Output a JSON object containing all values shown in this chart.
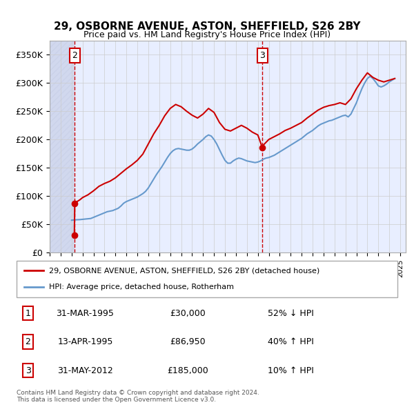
{
  "title": "29, OSBORNE AVENUE, ASTON, SHEFFIELD, S26 2BY",
  "subtitle": "Price paid vs. HM Land Registry's House Price Index (HPI)",
  "ylabel_ticks": [
    "£0",
    "£50K",
    "£100K",
    "£150K",
    "£200K",
    "£250K",
    "£300K",
    "£350K"
  ],
  "ytick_values": [
    0,
    50000,
    100000,
    150000,
    200000,
    250000,
    300000,
    350000
  ],
  "ylim": [
    0,
    375000
  ],
  "xlim_start": 1993.0,
  "xlim_end": 2025.5,
  "background_color": "#f0f4ff",
  "hatch_region_end": 1995.25,
  "transaction1": {
    "date_num": 1995.25,
    "price": 30000,
    "label": "1"
  },
  "transaction2": {
    "date_num": 1995.29,
    "price": 86950,
    "label": "2"
  },
  "transaction3": {
    "date_num": 2012.42,
    "price": 185000,
    "label": "3"
  },
  "legend_line1": "29, OSBORNE AVENUE, ASTON, SHEFFIELD, S26 2BY (detached house)",
  "legend_line2": "HPI: Average price, detached house, Rotherham",
  "table_rows": [
    {
      "num": "1",
      "date": "31-MAR-1995",
      "price": "£30,000",
      "hpi": "52% ↓ HPI"
    },
    {
      "num": "2",
      "date": "13-APR-1995",
      "price": "£86,950",
      "hpi": "40% ↑ HPI"
    },
    {
      "num": "3",
      "date": "31-MAY-2012",
      "price": "£185,000",
      "hpi": "10% ↑ HPI"
    }
  ],
  "footer": "Contains HM Land Registry data © Crown copyright and database right 2024.\nThis data is licensed under the Open Government Licence v3.0.",
  "hpi_data": {
    "dates": [
      1995.0,
      1995.25,
      1995.5,
      1995.75,
      1996.0,
      1996.25,
      1996.5,
      1996.75,
      1997.0,
      1997.25,
      1997.5,
      1997.75,
      1998.0,
      1998.25,
      1998.5,
      1998.75,
      1999.0,
      1999.25,
      1999.5,
      1999.75,
      2000.0,
      2000.25,
      2000.5,
      2000.75,
      2001.0,
      2001.25,
      2001.5,
      2001.75,
      2002.0,
      2002.25,
      2002.5,
      2002.75,
      2003.0,
      2003.25,
      2003.5,
      2003.75,
      2004.0,
      2004.25,
      2004.5,
      2004.75,
      2005.0,
      2005.25,
      2005.5,
      2005.75,
      2006.0,
      2006.25,
      2006.5,
      2006.75,
      2007.0,
      2007.25,
      2007.5,
      2007.75,
      2008.0,
      2008.25,
      2008.5,
      2008.75,
      2009.0,
      2009.25,
      2009.5,
      2009.75,
      2010.0,
      2010.25,
      2010.5,
      2010.75,
      2011.0,
      2011.25,
      2011.5,
      2011.75,
      2012.0,
      2012.25,
      2012.5,
      2012.75,
      2013.0,
      2013.25,
      2013.5,
      2013.75,
      2014.0,
      2014.25,
      2014.5,
      2014.75,
      2015.0,
      2015.25,
      2015.5,
      2015.75,
      2016.0,
      2016.25,
      2016.5,
      2016.75,
      2017.0,
      2017.25,
      2017.5,
      2017.75,
      2018.0,
      2018.25,
      2018.5,
      2018.75,
      2019.0,
      2019.25,
      2019.5,
      2019.75,
      2020.0,
      2020.25,
      2020.5,
      2020.75,
      2021.0,
      2021.25,
      2021.5,
      2021.75,
      2022.0,
      2022.25,
      2022.5,
      2022.75,
      2023.0,
      2023.25,
      2023.5,
      2023.75,
      2024.0,
      2024.25,
      2024.5
    ],
    "values": [
      57000,
      57500,
      57800,
      58000,
      58500,
      59000,
      59500,
      60000,
      62000,
      64000,
      66000,
      68000,
      70000,
      72000,
      73000,
      74000,
      76000,
      78000,
      82000,
      87000,
      90000,
      92000,
      94000,
      96000,
      98000,
      101000,
      104000,
      108000,
      114000,
      122000,
      130000,
      138000,
      145000,
      152000,
      160000,
      168000,
      175000,
      180000,
      183000,
      184000,
      183000,
      182000,
      181000,
      181000,
      183000,
      187000,
      192000,
      196000,
      200000,
      205000,
      208000,
      206000,
      200000,
      192000,
      182000,
      172000,
      163000,
      158000,
      158000,
      162000,
      165000,
      167000,
      166000,
      164000,
      162000,
      161000,
      160000,
      159000,
      160000,
      162000,
      165000,
      167000,
      168000,
      170000,
      172000,
      175000,
      178000,
      181000,
      184000,
      187000,
      190000,
      193000,
      196000,
      199000,
      202000,
      206000,
      210000,
      213000,
      216000,
      220000,
      224000,
      227000,
      229000,
      231000,
      233000,
      234000,
      236000,
      238000,
      240000,
      242000,
      243000,
      240000,
      245000,
      255000,
      265000,
      278000,
      290000,
      300000,
      308000,
      312000,
      308000,
      302000,
      295000,
      293000,
      295000,
      298000,
      302000,
      305000,
      308000
    ]
  },
  "property_data": {
    "dates": [
      1995.25,
      1995.29,
      1995.5,
      1995.75,
      1996.0,
      1996.5,
      1997.0,
      1997.5,
      1998.0,
      1998.5,
      1999.0,
      1999.5,
      2000.0,
      2000.5,
      2001.0,
      2001.5,
      2002.0,
      2002.5,
      2003.0,
      2003.5,
      2004.0,
      2004.5,
      2005.0,
      2005.5,
      2006.0,
      2006.5,
      2007.0,
      2007.5,
      2008.0,
      2008.5,
      2009.0,
      2009.5,
      2010.0,
      2010.5,
      2011.0,
      2011.5,
      2012.0,
      2012.42,
      2012.5,
      2012.75,
      2013.0,
      2013.5,
      2014.0,
      2014.5,
      2015.0,
      2015.5,
      2016.0,
      2016.5,
      2017.0,
      2017.5,
      2018.0,
      2018.5,
      2019.0,
      2019.5,
      2020.0,
      2020.5,
      2021.0,
      2021.5,
      2022.0,
      2022.5,
      2023.0,
      2023.5,
      2024.0,
      2024.5
    ],
    "values": [
      30000,
      86950,
      90000,
      93000,
      97000,
      102000,
      109000,
      117000,
      122000,
      126000,
      132000,
      140000,
      148000,
      155000,
      163000,
      174000,
      192000,
      210000,
      225000,
      242000,
      255000,
      262000,
      258000,
      250000,
      243000,
      238000,
      245000,
      255000,
      248000,
      230000,
      218000,
      215000,
      220000,
      225000,
      220000,
      213000,
      208000,
      185000,
      190000,
      195000,
      200000,
      205000,
      210000,
      216000,
      220000,
      225000,
      230000,
      238000,
      245000,
      252000,
      257000,
      260000,
      262000,
      265000,
      262000,
      272000,
      290000,
      305000,
      318000,
      310000,
      305000,
      302000,
      305000,
      308000
    ]
  },
  "property_color": "#cc0000",
  "hpi_color": "#6699cc",
  "marker_color": "#cc0000",
  "box_color": "#cc0000",
  "dashed_line_color": "#cc0000",
  "grid_color": "#cccccc",
  "chart_bg": "#e8eeff",
  "hatch_color": "#c8d0e8"
}
